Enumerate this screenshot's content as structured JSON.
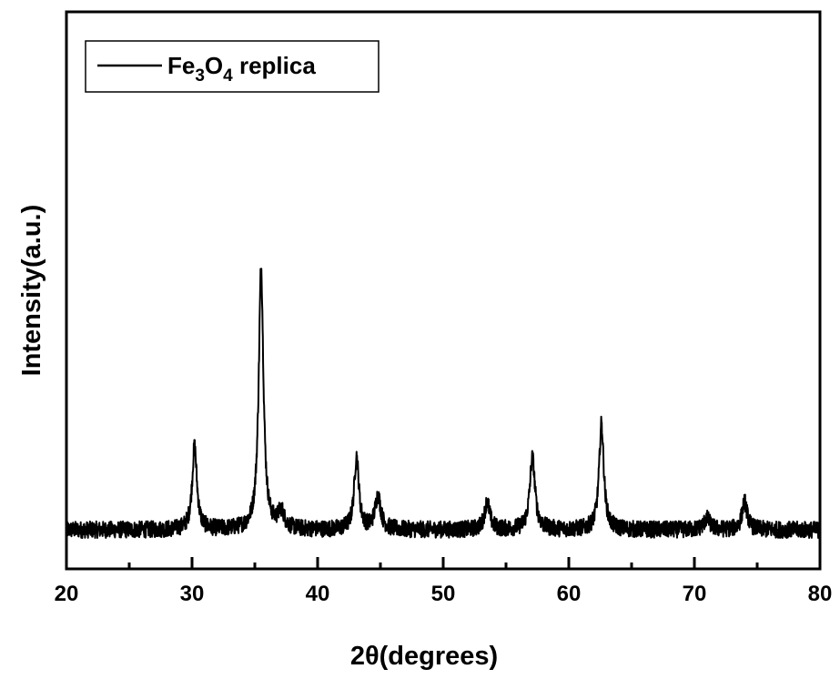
{
  "chart_data": {
    "type": "line",
    "xlabel": "2θ(degrees)",
    "ylabel": "Intensity(a.u.)",
    "xlim": [
      20,
      80
    ],
    "ylim": [
      0,
      1
    ],
    "x_ticks_major": [
      20,
      30,
      40,
      50,
      60,
      70,
      80
    ],
    "x_ticks_minor": [
      25,
      35,
      45,
      55,
      65,
      75
    ],
    "y_tick_labels": "none (arbitrary units)",
    "legend": {
      "position": "top-left",
      "base": "Fe",
      "sub1": "3",
      "mid": "O",
      "sub2": "4",
      "suffix": " replica"
    },
    "series": [
      {
        "name": "Fe3O4 replica",
        "color": "#000000",
        "baseline": 0.07,
        "peaks": [
          {
            "two_theta": 30.2,
            "intensity": 0.15,
            "fwhm": 0.45
          },
          {
            "two_theta": 35.5,
            "intensity": 0.47,
            "fwhm": 0.45
          },
          {
            "two_theta": 37.1,
            "intensity": 0.03,
            "fwhm": 0.6
          },
          {
            "two_theta": 43.1,
            "intensity": 0.13,
            "fwhm": 0.45
          },
          {
            "two_theta": 44.8,
            "intensity": 0.06,
            "fwhm": 0.55
          },
          {
            "two_theta": 53.5,
            "intensity": 0.05,
            "fwhm": 0.5
          },
          {
            "two_theta": 57.1,
            "intensity": 0.13,
            "fwhm": 0.5
          },
          {
            "two_theta": 62.6,
            "intensity": 0.19,
            "fwhm": 0.45
          },
          {
            "two_theta": 71.0,
            "intensity": 0.02,
            "fwhm": 0.6
          },
          {
            "two_theta": 74.0,
            "intensity": 0.05,
            "fwhm": 0.5
          }
        ]
      }
    ]
  }
}
